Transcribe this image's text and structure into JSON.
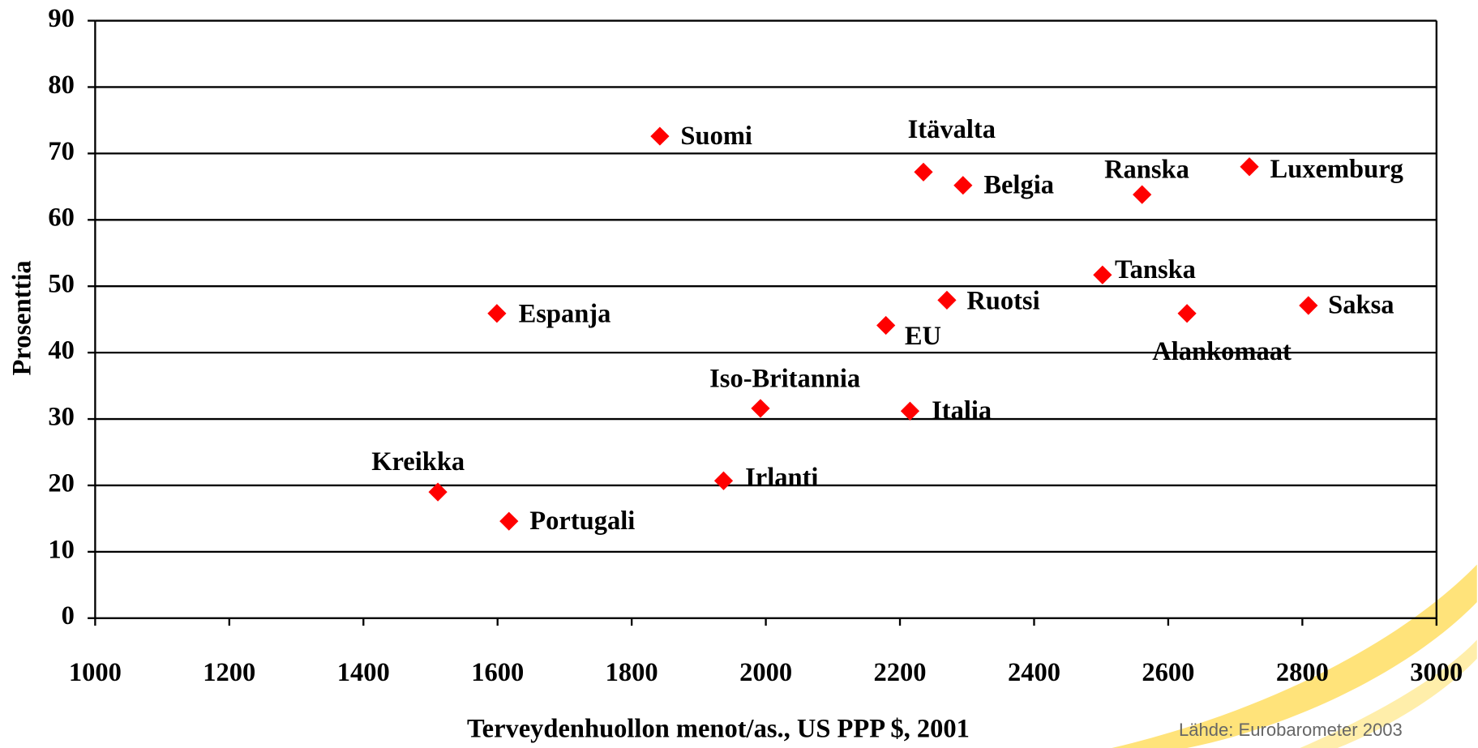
{
  "chart_data": {
    "type": "scatter",
    "xlabel": "Terveydenhuollon menot/as., US PPP $, 2001",
    "ylabel": "Prosenttia",
    "source": "Lähde: Eurobarometer 2003",
    "labels": [
      "Suomi",
      "Itävalta",
      "Belgia",
      "Ranska",
      "Luxemburg",
      "Tanska",
      "Saksa",
      "Alankomaat",
      "Ruotsi",
      "EU",
      "Espanja",
      "Iso-Britannia",
      "Italia",
      "Kreikka",
      "Irlanti",
      "Portugali"
    ],
    "x": [
      1842,
      2235,
      2294,
      2561,
      2721,
      2502,
      2809,
      2628,
      2270,
      2179,
      1599,
      1992,
      2215,
      1511,
      1937,
      1617
    ],
    "series": [
      {
        "color": "#ff0000",
        "values": [
          72.6,
          67.2,
          65.2,
          63.8,
          68.0,
          51.7,
          47.1,
          45.9,
          47.9,
          44.1,
          45.9,
          31.6,
          31.2,
          19.0,
          20.7,
          14.6
        ]
      }
    ],
    "xlim": [
      1000,
      3000
    ],
    "xticks": [
      1000,
      1200,
      1400,
      1600,
      1800,
      2000,
      2200,
      2400,
      2600,
      2800,
      3000
    ],
    "ylim": [
      0,
      90
    ],
    "yticks": [
      0,
      10,
      20,
      30,
      40,
      50,
      60,
      70,
      80,
      90
    ],
    "grid": true
  }
}
